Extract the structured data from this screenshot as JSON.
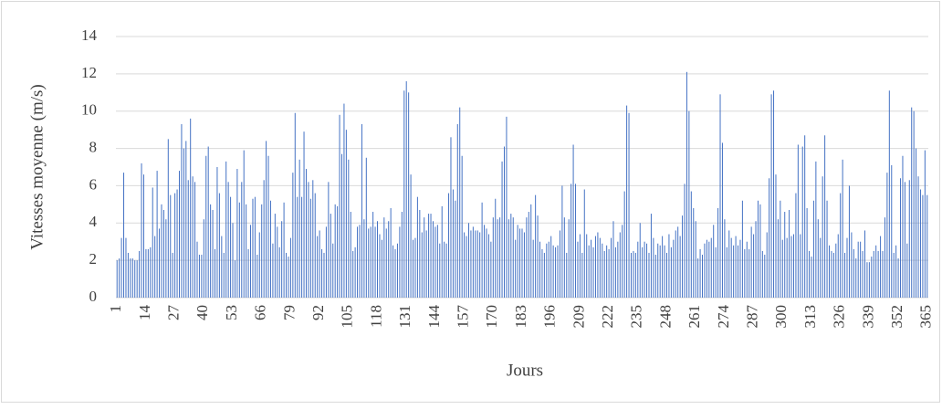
{
  "chart_data": {
    "type": "bar",
    "x_label": "Jours",
    "y_label": "Vitesses moyenne (m/s)",
    "color": "#4472c4",
    "grid": true,
    "ylim": [
      0,
      14
    ],
    "yticks": [
      0,
      2,
      4,
      6,
      8,
      10,
      12,
      14
    ],
    "categories": [
      1,
      null,
      null,
      null,
      null,
      null,
      null,
      null,
      null,
      null,
      null,
      null,
      null,
      14,
      null,
      null,
      null,
      null,
      null,
      null,
      null,
      null,
      null,
      null,
      null,
      null,
      27,
      null,
      null,
      null,
      null,
      null,
      null,
      null,
      null,
      null,
      null,
      null,
      null,
      40,
      null,
      null,
      null,
      null,
      null,
      null,
      null,
      null,
      null,
      null,
      null,
      null,
      53,
      null,
      null,
      null,
      null,
      null,
      null,
      null,
      null,
      null,
      null,
      null,
      null,
      66,
      null,
      null,
      null,
      null,
      null,
      null,
      null,
      null,
      null,
      null,
      null,
      null,
      79,
      null,
      null,
      null,
      null,
      null,
      null,
      null,
      null,
      null,
      null,
      null,
      null,
      92,
      null,
      null,
      null,
      null,
      null,
      null,
      null,
      null,
      null,
      null,
      null,
      null,
      105,
      null,
      null,
      null,
      null,
      null,
      null,
      null,
      null,
      null,
      null,
      null,
      null,
      118,
      null,
      null,
      null,
      null,
      null,
      null,
      null,
      null,
      null,
      null,
      null,
      null,
      131,
      null,
      null,
      null,
      null,
      null,
      null,
      null,
      null,
      null,
      null,
      null,
      null,
      144,
      null,
      null,
      null,
      null,
      null,
      null,
      null,
      null,
      null,
      null,
      null,
      null,
      157,
      null,
      null,
      null,
      null,
      null,
      null,
      null,
      null,
      null,
      null,
      null,
      null,
      170,
      null,
      null,
      null,
      null,
      null,
      null,
      null,
      null,
      null,
      null,
      null,
      null,
      183,
      null,
      null,
      null,
      null,
      null,
      null,
      null,
      null,
      null,
      null,
      null,
      null,
      196,
      null,
      null,
      null,
      null,
      null,
      null,
      null,
      null,
      null,
      null,
      null,
      null,
      209,
      null,
      null,
      null,
      null,
      null,
      null,
      null,
      null,
      null,
      null,
      null,
      null,
      222,
      null,
      null,
      null,
      null,
      null,
      null,
      null,
      null,
      null,
      null,
      null,
      null,
      235,
      null,
      null,
      null,
      null,
      null,
      null,
      null,
      null,
      null,
      null,
      null,
      null,
      248,
      null,
      null,
      null,
      null,
      null,
      null,
      null,
      null,
      null,
      null,
      null,
      null,
      261,
      null,
      null,
      null,
      null,
      null,
      null,
      null,
      null,
      null,
      null,
      null,
      null,
      274,
      null,
      null,
      null,
      null,
      null,
      null,
      null,
      null,
      null,
      null,
      null,
      null,
      287,
      null,
      null,
      null,
      null,
      null,
      null,
      null,
      null,
      null,
      null,
      null,
      null,
      300,
      null,
      null,
      null,
      null,
      null,
      null,
      null,
      null,
      null,
      null,
      null,
      null,
      313,
      null,
      null,
      null,
      null,
      null,
      null,
      null,
      null,
      null,
      null,
      null,
      null,
      326,
      null,
      null,
      null,
      null,
      null,
      null,
      null,
      null,
      null,
      null,
      null,
      null,
      339,
      null,
      null,
      null,
      null,
      null,
      null,
      null,
      null,
      null,
      null,
      null,
      null,
      352,
      null,
      null,
      null,
      null,
      null,
      null,
      null,
      null,
      null,
      null,
      null,
      null,
      365
    ],
    "values": [
      2,
      2.1,
      3.2,
      6.7,
      3.2,
      2.4,
      2.1,
      2.1,
      2,
      2,
      2.5,
      7.2,
      6.6,
      2.6,
      2.6,
      2.7,
      5.9,
      3.3,
      6.8,
      3.7,
      5,
      4.7,
      4.2,
      8.5,
      5.5,
      2.4,
      5.6,
      5.8,
      6.8,
      9.3,
      8,
      8.4,
      6.3,
      9.6,
      6.5,
      6.2,
      3,
      2.3,
      2.3,
      4.2,
      7.6,
      8.1,
      5,
      4.7,
      2.6,
      7,
      5.6,
      3.3,
      2.4,
      7.3,
      6.2,
      5.4,
      4,
      2,
      6.9,
      5.1,
      6.2,
      7.9,
      5,
      2.6,
      3.9,
      5.3,
      5.4,
      2.3,
      3.5,
      5,
      6.3,
      8.4,
      7.6,
      5.2,
      2.9,
      4.5,
      3.8,
      2.7,
      4.1,
      5.1,
      2.4,
      2.2,
      3.2,
      6.7,
      9.9,
      5.4,
      7.4,
      5.4,
      8.9,
      6.9,
      6.2,
      5.3,
      6.3,
      5.6,
      3.3,
      3.6,
      2.6,
      2.4,
      3.8,
      6.2,
      4.5,
      2.9,
      5,
      4.9,
      9.8,
      7.7,
      10.4,
      9,
      7.4,
      4.6,
      2.5,
      2.7,
      3.8,
      3.9,
      9.3,
      4.2,
      7.5,
      3.7,
      3.8,
      4.6,
      3.8,
      4.1,
      3.4,
      3.1,
      4.3,
      3.7,
      4.1,
      4.8,
      2.8,
      2.6,
      2.9,
      3.8,
      4.6,
      11.1,
      11.6,
      11,
      6.6,
      3.1,
      3.2,
      5.4,
      4.7,
      3.5,
      4.3,
      3.6,
      4.5,
      4.5,
      4.1,
      3.8,
      3.9,
      2.9,
      4.9,
      3,
      2.9,
      5.6,
      8.6,
      5.8,
      5.2,
      9.3,
      10.2,
      7.6,
      3.5,
      3.3,
      4,
      3.6,
      3.8,
      3.6,
      3.6,
      3.5,
      5.1,
      3.9,
      3.7,
      3.4,
      3,
      4.3,
      5.3,
      4.2,
      4.3,
      7.3,
      8.1,
      9.7,
      4.2,
      4.5,
      4.3,
      3.1,
      3.9,
      3.7,
      3.7,
      3.5,
      4.3,
      4.6,
      5,
      3.1,
      5.5,
      4.4,
      3,
      2.6,
      2.4,
      2.9,
      3,
      3.3,
      2.8,
      2.7,
      2.8,
      3.6,
      6,
      4.3,
      2.4,
      4.2,
      6.1,
      8.2,
      6.1,
      3,
      3.4,
      2.4,
      5.8,
      3.4,
      2.8,
      3.1,
      2.7,
      3.3,
      3.5,
      3.2,
      2.9,
      2.5,
      2.8,
      2.6,
      3.2,
      4.1,
      2.7,
      3,
      3.5,
      3.9,
      5.7,
      10.3,
      9.9,
      2.4,
      2.5,
      2.4,
      3,
      4,
      2.7,
      3,
      2.9,
      2.4,
      4.5,
      3.2,
      2.3,
      2.9,
      2.8,
      3.3,
      2.8,
      2.4,
      3.4,
      2.7,
      3.1,
      3.6,
      3.8,
      3.3,
      4.4,
      6.1,
      12.1,
      10,
      5.7,
      4.8,
      4.1,
      2.1,
      2.6,
      2.3,
      2.9,
      3.1,
      3,
      3.2,
      3.9,
      2.7,
      4.8,
      10.9,
      8.3,
      4.2,
      2.7,
      3.6,
      3.2,
      2.8,
      3.3,
      2.8,
      3.1,
      5.2,
      2.6,
      3,
      2.6,
      3.8,
      3.4,
      4.1,
      5.2,
      5,
      2.5,
      2.3,
      3.5,
      6.4,
      10.9,
      11.1,
      6.6,
      4.2,
      5.2,
      3.1,
      4.6,
      3.2,
      4.7,
      3.3,
      3.4,
      5.6,
      8.2,
      3.4,
      8.1,
      8.7,
      4.8,
      2.5,
      2.2,
      5.2,
      7.3,
      4.2,
      3.2,
      6.5,
      8.7,
      5.2,
      2.8,
      2.5,
      2.4,
      2.9,
      3.4,
      5.6,
      7.4,
      2.4,
      3.2,
      6,
      3.5,
      2.6,
      2.1,
      3,
      3,
      2.5,
      3.6,
      1.9,
      1.9,
      2.2,
      2.5,
      2.8,
      2.5,
      3.3,
      2.5,
      4.3,
      6.7,
      11.1,
      7.1,
      2.4,
      2.8,
      2.1,
      6.4,
      7.6,
      6.2,
      2.9,
      6.3,
      10.2,
      10,
      8,
      6.5,
      5.8,
      5.5,
      7.9,
      5.5
    ]
  }
}
